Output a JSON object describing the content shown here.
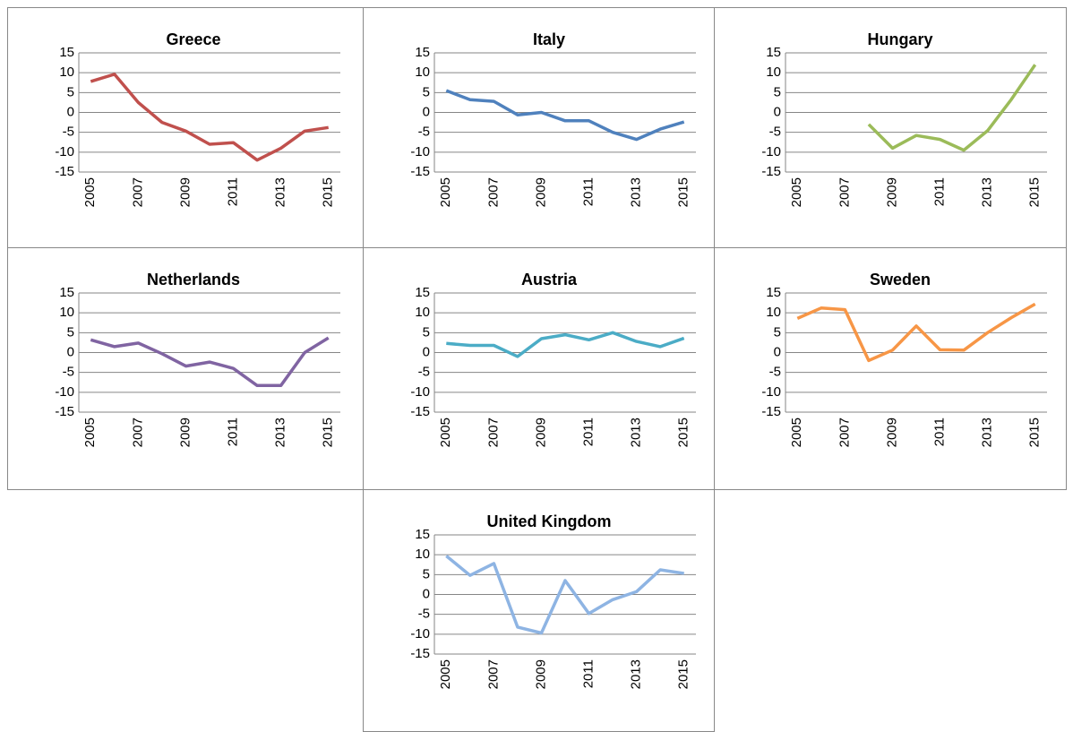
{
  "chart_data": [
    {
      "type": "line",
      "title": "Greece",
      "x": [
        2005,
        2006,
        2007,
        2008,
        2009,
        2010,
        2011,
        2012,
        2013,
        2014,
        2015
      ],
      "values": [
        7.8,
        9.6,
        2.5,
        -2.5,
        -4.7,
        -8,
        -7.6,
        -12,
        -9,
        -4.7,
        -3.8
      ],
      "color": "#c0504d",
      "xlim": [
        2004.5,
        2015.5
      ],
      "xticks": [
        2005,
        2007,
        2009,
        2011,
        2013,
        2015
      ],
      "ylim": [
        -15,
        15
      ],
      "yticks": [
        -15,
        -10,
        -5,
        0,
        5,
        10,
        15
      ],
      "grid": true
    },
    {
      "type": "line",
      "title": "Italy",
      "x": [
        2005,
        2006,
        2007,
        2008,
        2009,
        2010,
        2011,
        2012,
        2013,
        2014,
        2015
      ],
      "values": [
        5.5,
        3.2,
        2.8,
        -0.6,
        0,
        -2.1,
        -2.1,
        -5,
        -6.8,
        -4.2,
        -2.4
      ],
      "color": "#4f81bd",
      "xlim": [
        2004.5,
        2015.5
      ],
      "xticks": [
        2005,
        2007,
        2009,
        2011,
        2013,
        2015
      ],
      "ylim": [
        -15,
        15
      ],
      "yticks": [
        -15,
        -10,
        -5,
        0,
        5,
        10,
        15
      ],
      "grid": true
    },
    {
      "type": "line",
      "title": "Hungary",
      "x": [
        2005,
        2006,
        2007,
        2008,
        2009,
        2010,
        2011,
        2012,
        2013,
        2014,
        2015
      ],
      "values": [
        null,
        null,
        null,
        -3,
        -9,
        -5.8,
        -6.8,
        -9.5,
        -4.6,
        3.3,
        12
      ],
      "color": "#9bbb59",
      "xlim": [
        2004.5,
        2015.5
      ],
      "xticks": [
        2005,
        2007,
        2009,
        2011,
        2013,
        2015
      ],
      "ylim": [
        -15,
        15
      ],
      "yticks": [
        -15,
        -10,
        -5,
        0,
        5,
        10,
        15
      ],
      "grid": true
    },
    {
      "type": "line",
      "title": "Netherlands",
      "x": [
        2005,
        2006,
        2007,
        2008,
        2009,
        2010,
        2011,
        2012,
        2013,
        2014,
        2015
      ],
      "values": [
        3.2,
        1.5,
        2.4,
        -0.3,
        -3.4,
        -2.4,
        -4,
        -8.3,
        -8.3,
        0,
        3.7
      ],
      "color": "#8064a2",
      "xlim": [
        2004.5,
        2015.5
      ],
      "xticks": [
        2005,
        2007,
        2009,
        2011,
        2013,
        2015
      ],
      "ylim": [
        -15,
        15
      ],
      "yticks": [
        -15,
        -10,
        -5,
        0,
        5,
        10,
        15
      ],
      "grid": true
    },
    {
      "type": "line",
      "title": "Austria",
      "x": [
        2005,
        2006,
        2007,
        2008,
        2009,
        2010,
        2011,
        2012,
        2013,
        2014,
        2015
      ],
      "values": [
        2.3,
        1.8,
        1.8,
        -1,
        3.5,
        4.5,
        3.2,
        5,
        2.8,
        1.5,
        3.6
      ],
      "color": "#4bacc6",
      "xlim": [
        2004.5,
        2015.5
      ],
      "xticks": [
        2005,
        2007,
        2009,
        2011,
        2013,
        2015
      ],
      "ylim": [
        -15,
        15
      ],
      "yticks": [
        -15,
        -10,
        -5,
        0,
        5,
        10,
        15
      ],
      "grid": true
    },
    {
      "type": "line",
      "title": "Sweden",
      "x": [
        2005,
        2006,
        2007,
        2008,
        2009,
        2010,
        2011,
        2012,
        2013,
        2014,
        2015
      ],
      "values": [
        8.6,
        11.2,
        10.8,
        -2,
        0.6,
        6.7,
        0.7,
        0.6,
        5,
        8.8,
        12.2
      ],
      "color": "#f79646",
      "xlim": [
        2004.5,
        2015.5
      ],
      "xticks": [
        2005,
        2007,
        2009,
        2011,
        2013,
        2015
      ],
      "ylim": [
        -15,
        15
      ],
      "yticks": [
        -15,
        -10,
        -5,
        0,
        5,
        10,
        15
      ],
      "grid": true
    },
    {
      "type": "line",
      "title": "United Kingdom",
      "x": [
        2005,
        2006,
        2007,
        2008,
        2009,
        2010,
        2011,
        2012,
        2013,
        2014,
        2015
      ],
      "values": [
        9.7,
        4.8,
        7.8,
        -8.2,
        -9.7,
        3.5,
        -4.8,
        -1.3,
        0.7,
        6.2,
        5.3
      ],
      "color": "#8eb4e3",
      "xlim": [
        2004.5,
        2015.5
      ],
      "xticks": [
        2005,
        2007,
        2009,
        2011,
        2013,
        2015
      ],
      "ylim": [
        -15,
        15
      ],
      "yticks": [
        -15,
        -10,
        -5,
        0,
        5,
        10,
        15
      ],
      "grid": true
    }
  ]
}
